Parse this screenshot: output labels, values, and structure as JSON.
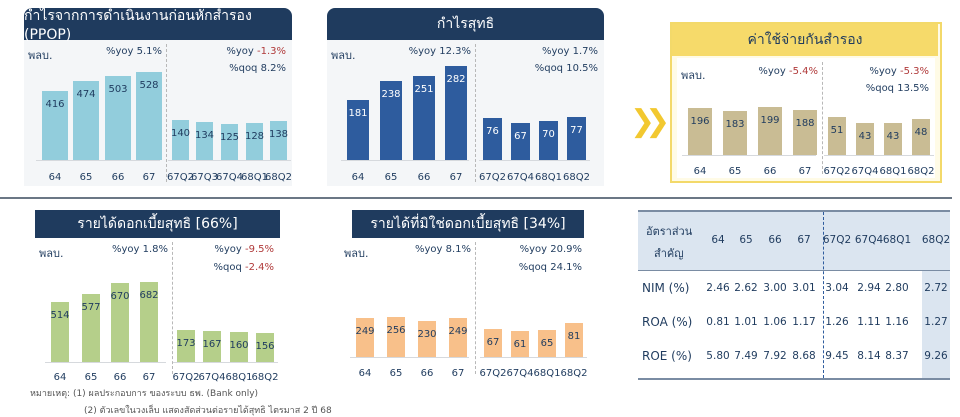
{
  "colors": {
    "navy": "#1f3b5e",
    "negative": "#b03a3a",
    "arrow": "#f2c830",
    "reserve_border": "#f3d96a",
    "reserve_header": "#f6da6a"
  },
  "arrow_icon": "double-chevron-right",
  "chart_data": [
    {
      "type": "bar",
      "title": "กำไรจากการดำเนินงานก่อนหักสำรอง (PPOP)",
      "unit": "พลบ.",
      "color": "#92cddc",
      "annual": {
        "categories": [
          "64",
          "65",
          "66",
          "67"
        ],
        "values": [
          416,
          474,
          503,
          528
        ],
        "yoy_label": "%yoy",
        "yoy": "5.1%"
      },
      "quarterly": {
        "categories": [
          "67Q2",
          "67Q3",
          "67Q4",
          "68Q1",
          "68Q2"
        ],
        "values": [
          140,
          134,
          125,
          128,
          138
        ],
        "yoy_label": "%yoy",
        "yoy": "-1.3%",
        "qoq_label": "%qoq",
        "qoq": "8.2%"
      }
    },
    {
      "type": "bar",
      "title": "กำไรสุทธิ",
      "unit": "พลบ.",
      "color": "#2e5c9e",
      "annual": {
        "categories": [
          "64",
          "65",
          "66",
          "67"
        ],
        "values": [
          181,
          238,
          251,
          282
        ],
        "yoy_label": "%yoy",
        "yoy": "12.3%"
      },
      "quarterly": {
        "categories": [
          "67Q2",
          "67Q4",
          "68Q1",
          "68Q2"
        ],
        "values": [
          76,
          67,
          70,
          77
        ],
        "yoy_label": "%yoy",
        "yoy": "1.7%",
        "qoq_label": "%qoq",
        "qoq": "10.5%"
      }
    },
    {
      "type": "bar",
      "title": "ค่าใช้จ่ายกันสำรอง",
      "unit": "พลบ.",
      "color": "#c9bc94",
      "annual": {
        "categories": [
          "64",
          "65",
          "66",
          "67"
        ],
        "values": [
          196,
          183,
          199,
          188
        ],
        "yoy_label": "%yoy",
        "yoy": "-5.4%"
      },
      "quarterly": {
        "categories": [
          "67Q2",
          "67Q4",
          "68Q1",
          "68Q2"
        ],
        "values": [
          51,
          43,
          43,
          48
        ],
        "yoy_label": "%yoy",
        "yoy": "-5.3%",
        "qoq_label": "%qoq",
        "qoq": "13.5%"
      }
    },
    {
      "type": "bar",
      "title": "รายได้ดอกเบี้ยสุทธิ [66%]",
      "unit": "พลบ.",
      "color": "#b5cf8a",
      "annual": {
        "categories": [
          "64",
          "65",
          "66",
          "67"
        ],
        "values": [
          514,
          577,
          670,
          682
        ],
        "yoy_label": "%yoy",
        "yoy": "1.8%"
      },
      "quarterly": {
        "categories": [
          "67Q2",
          "67Q4",
          "68Q1",
          "68Q2"
        ],
        "values": [
          173,
          167,
          160,
          156
        ],
        "yoy_label": "%yoy",
        "yoy": "-9.5%",
        "qoq_label": "%qoq",
        "qoq": "-2.4%"
      }
    },
    {
      "type": "bar",
      "title": "รายได้ที่มิใช่ดอกเบี้ยสุทธิ [34%]",
      "unit": "พลบ.",
      "color": "#f8c08a",
      "annual": {
        "categories": [
          "64",
          "65",
          "66",
          "67"
        ],
        "values": [
          249,
          256,
          230,
          249
        ],
        "yoy_label": "%yoy",
        "yoy": "8.1%"
      },
      "quarterly": {
        "categories": [
          "67Q2",
          "67Q4",
          "68Q1",
          "68Q2"
        ],
        "values": [
          67,
          61,
          65,
          81
        ],
        "yoy_label": "%yoy",
        "yoy": "20.9%",
        "qoq_label": "%qoq",
        "qoq": "24.1%"
      }
    }
  ],
  "notes": {
    "line1": "หมายเหตุ: (1) ผลประกอบการ ของระบบ ธพ. (Bank only)",
    "line2": "(2) ตัวเลขในวงเล็บ แสดงสัดส่วนต่อรายได้สุทธิ ไตรมาส 2 ปี 68"
  },
  "ratios": {
    "header_line1": "อัตราส่วน",
    "header_line2": "สำคัญ",
    "columns": [
      "64",
      "65",
      "66",
      "67",
      "67Q2",
      "67Q4",
      "68Q1",
      "68Q2"
    ],
    "rows": [
      {
        "label": "NIM (%)",
        "values": [
          "2.46",
          "2.62",
          "3.00",
          "3.01",
          "3.04",
          "2.94",
          "2.80",
          "2.72"
        ]
      },
      {
        "label": "ROA (%)",
        "values": [
          "0.81",
          "1.01",
          "1.06",
          "1.17",
          "1.26",
          "1.11",
          "1.16",
          "1.27"
        ]
      },
      {
        "label": "ROE (%)",
        "values": [
          "5.80",
          "7.49",
          "7.92",
          "8.68",
          "9.45",
          "8.14",
          "8.37",
          "9.26"
        ]
      }
    ]
  }
}
